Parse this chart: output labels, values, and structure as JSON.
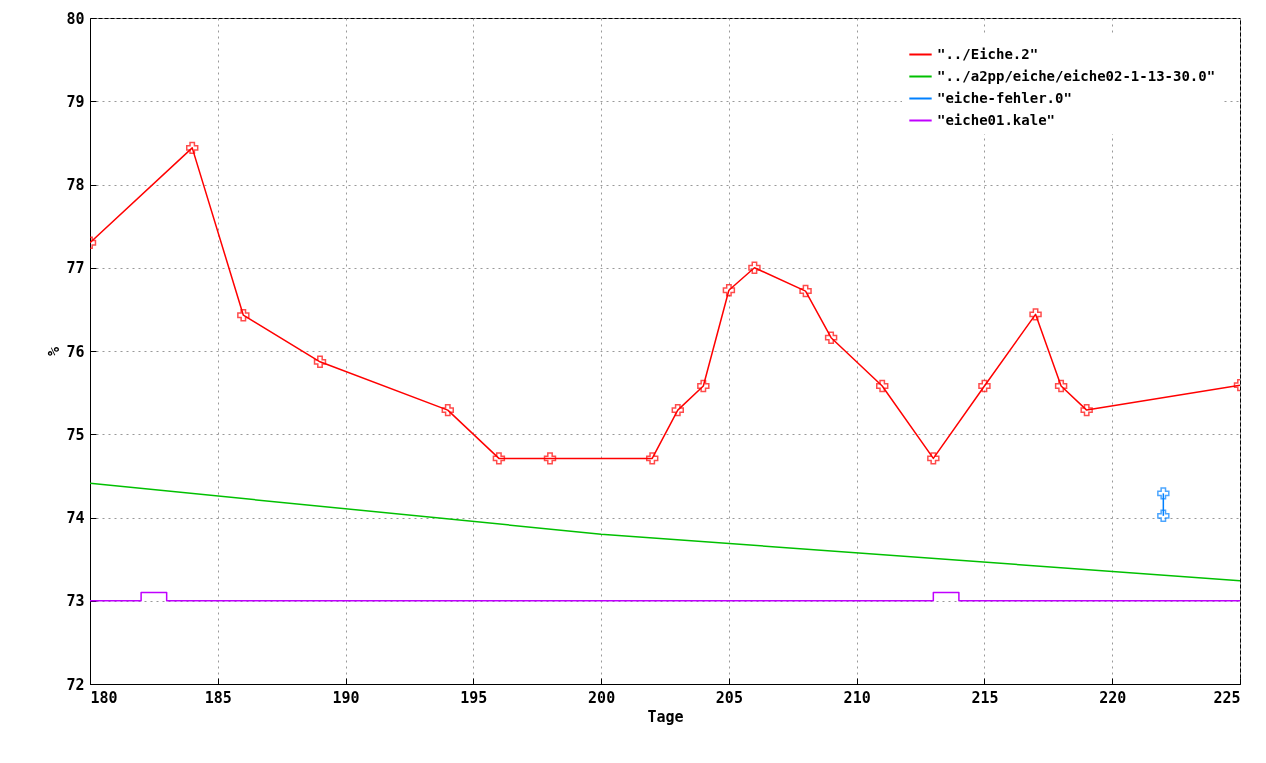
{
  "chart_data": {
    "type": "line",
    "xlabel": "Tage",
    "ylabel": "%",
    "xlim": [
      180,
      225
    ],
    "ylim": [
      72,
      80
    ],
    "xticks": [
      180,
      185,
      190,
      195,
      200,
      205,
      210,
      215,
      220,
      225
    ],
    "yticks": [
      72,
      73,
      74,
      75,
      76,
      77,
      78,
      79,
      80
    ],
    "grid": true,
    "legend": "top right",
    "line_style": "solid",
    "series": [
      {
        "name": "\"../Eiche.2\"",
        "color": "#ff0000",
        "marker": "cross",
        "x": [
          180,
          184,
          186,
          189,
          194,
          196,
          198,
          202,
          203,
          204,
          205,
          206,
          208,
          209,
          211,
          213,
          215,
          217,
          218,
          219,
          225
        ],
        "values": [
          77.3,
          78.44,
          76.43,
          75.87,
          75.29,
          74.71,
          74.71,
          74.71,
          75.29,
          75.58,
          76.73,
          77.0,
          76.72,
          76.16,
          75.58,
          74.71,
          75.58,
          76.44,
          75.58,
          75.29,
          75.59
        ]
      },
      {
        "name": "\"../a2pp/eiche/eiche02-1-13-30.0\"",
        "color": "#00c000",
        "marker": "none",
        "x": [
          180,
          200,
          225
        ],
        "values": [
          74.41,
          73.8,
          73.24
        ]
      },
      {
        "name": "\"eiche-fehler.0\"",
        "color": "#0080ff",
        "marker": "cross",
        "x": [
          222,
          222
        ],
        "values": [
          74.29,
          74.02
        ]
      },
      {
        "name": "\"eiche01.kale\"",
        "color": "#c000ff",
        "type": "step",
        "marker": "none",
        "x": [
          180,
          182,
          183,
          213,
          214,
          225
        ],
        "values": [
          73,
          73.1,
          73,
          73.1,
          73,
          73
        ]
      }
    ]
  }
}
